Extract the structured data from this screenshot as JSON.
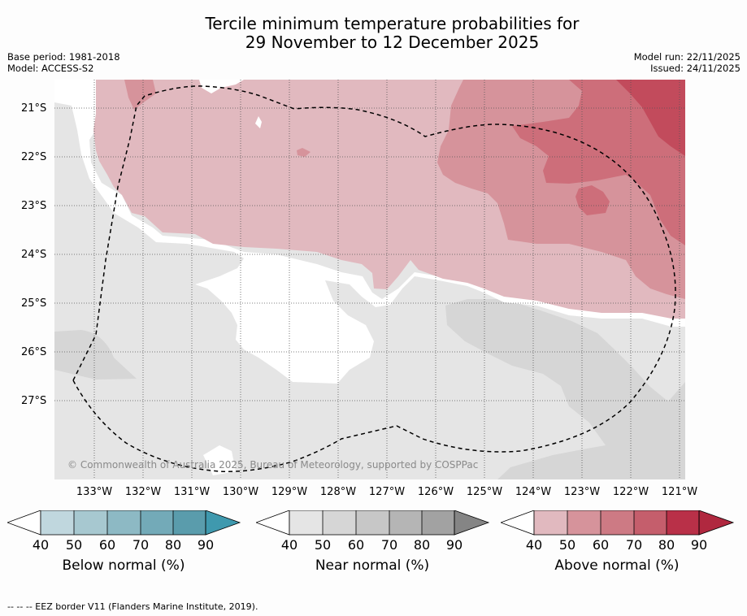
{
  "header": {
    "title_line1": "Tercile minimum temperature probabilities for",
    "title_line2": "29 November to 12 December 2025",
    "base_period": "Base period: 1981-2018",
    "model": "Model: ACCESS-S2",
    "model_run": "Model run: 22/11/2025",
    "issued": "Issued: 24/11/2025"
  },
  "map": {
    "lat_labels": [
      "21°S",
      "22°S",
      "23°S",
      "24°S",
      "25°S",
      "26°S",
      "27°S"
    ],
    "lon_labels": [
      "133°W",
      "132°W",
      "131°W",
      "130°W",
      "129°W",
      "128°W",
      "127°W",
      "126°W",
      "125°W",
      "124°W",
      "123°W",
      "122°W",
      "121°W"
    ],
    "copyright": "© Commonwealth of Australia 2025, Bureau of Meteorology, supported by COSPPac",
    "colors": {
      "near_40": "#e5e5e5",
      "near_50": "#d6d6d6",
      "above_40": "#e1b9bf",
      "above_50": "#d6939b",
      "above_60": "#cd6e7a",
      "above_70": "#c24b5c",
      "white": "#ffffff"
    }
  },
  "colorbars": [
    {
      "label": "Below normal (%)",
      "ticks": [
        "40",
        "50",
        "60",
        "70",
        "80",
        "90"
      ],
      "colors": [
        "#c0d7de",
        "#a7c8d0",
        "#8db9c4",
        "#73aab8",
        "#5a9cac",
        "#3f99ae"
      ]
    },
    {
      "label": "Near normal (%)",
      "ticks": [
        "40",
        "50",
        "60",
        "70",
        "80",
        "90"
      ],
      "colors": [
        "#e5e5e5",
        "#d6d6d6",
        "#c7c7c7",
        "#b5b5b5",
        "#a2a2a2",
        "#858585"
      ]
    },
    {
      "label": "Above normal (%)",
      "ticks": [
        "40",
        "50",
        "60",
        "70",
        "80",
        "90"
      ],
      "colors": [
        "#e1b9bf",
        "#d6939b",
        "#cd7a84",
        "#c55e6c",
        "#b93048",
        "#b0283f"
      ]
    }
  ],
  "footnote": "--  --  -- EEZ border V11 (Flanders Marine Institute, 2019)."
}
